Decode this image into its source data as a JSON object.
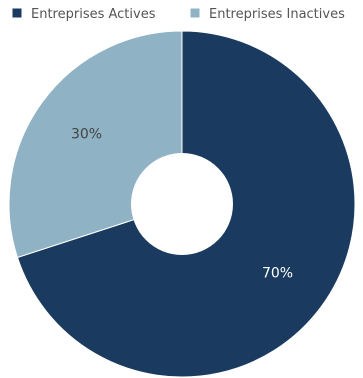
{
  "chart_data": {
    "type": "pie",
    "variant": "donut",
    "categories": [
      "Entreprises Actives",
      "Entreprises Inactives"
    ],
    "values": [
      70,
      30
    ],
    "value_labels": [
      "70%",
      "30%"
    ],
    "legend_position": "top",
    "colors": [
      "#1a3b5f",
      "#8fb3c5"
    ],
    "label_colors": [
      "#ffffff",
      "#444444"
    ]
  }
}
